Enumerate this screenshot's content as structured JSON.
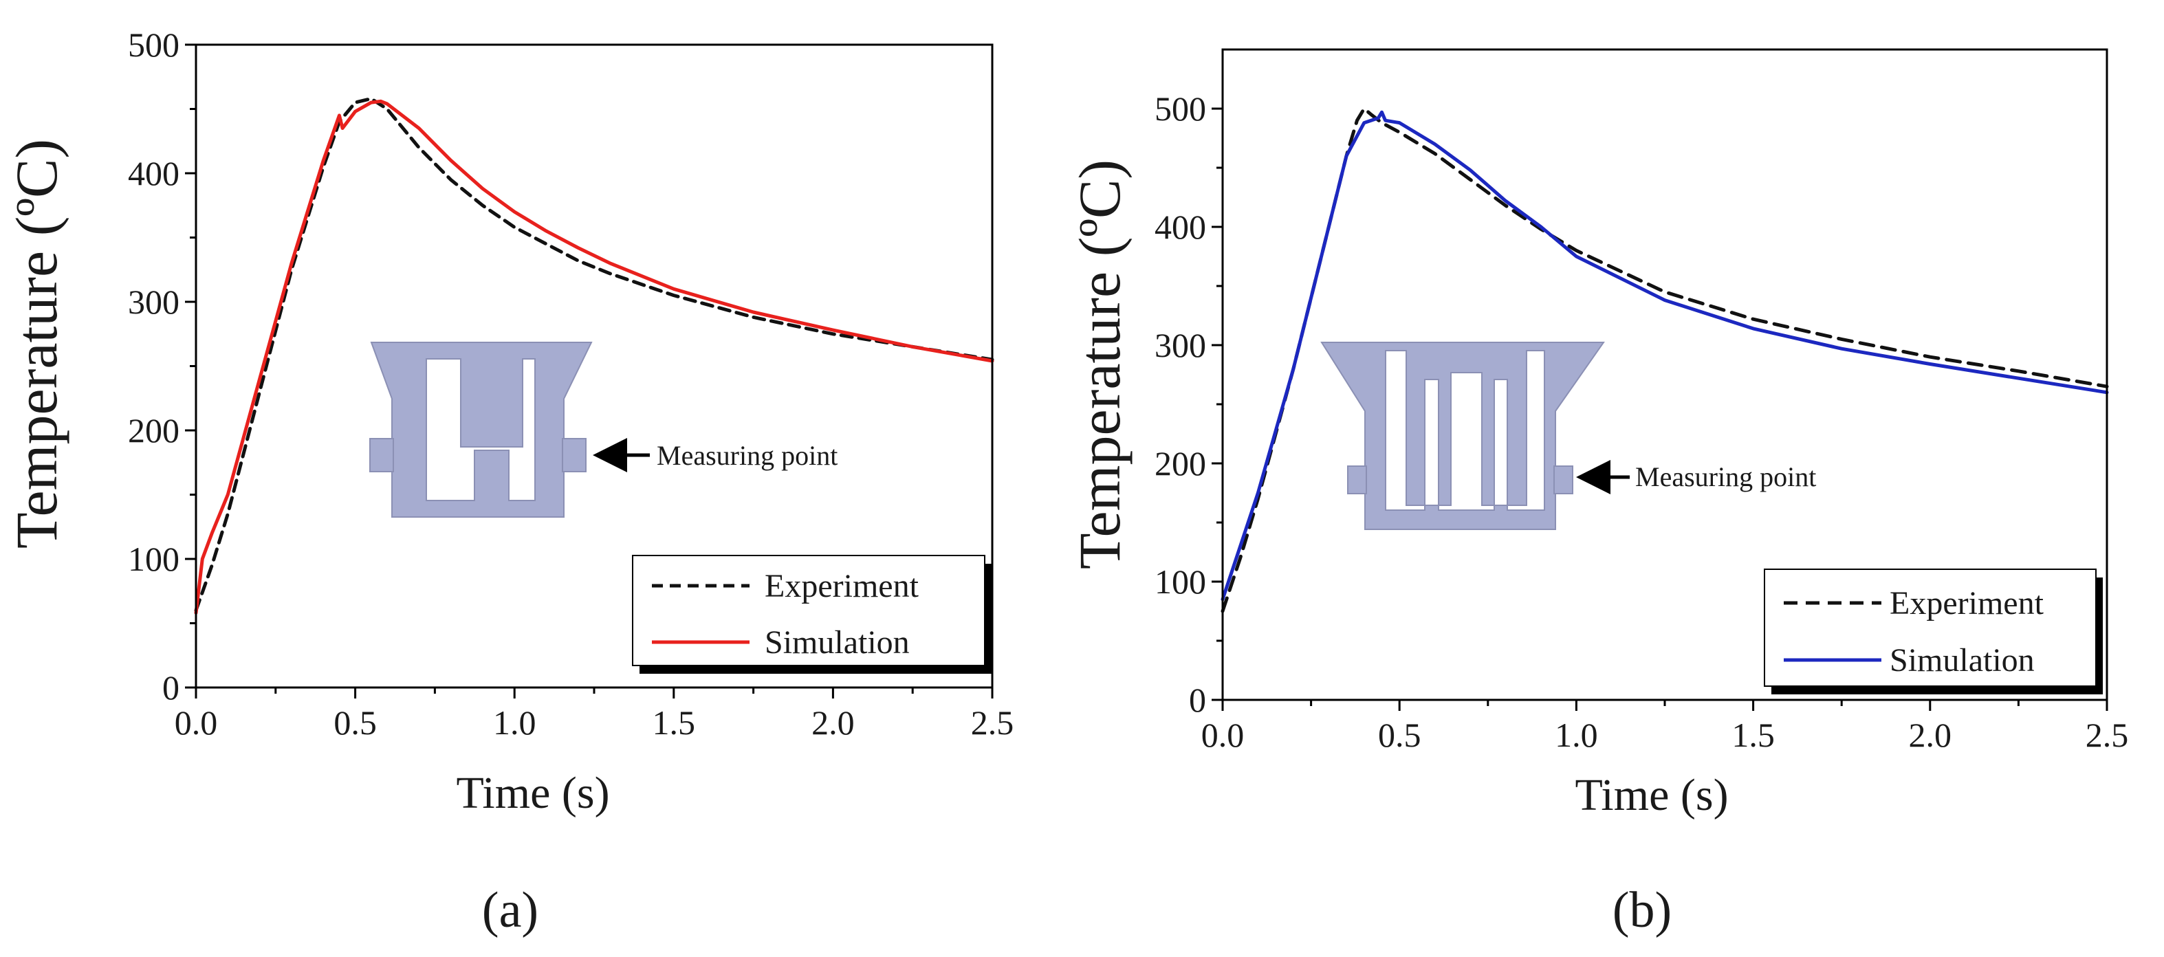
{
  "chart_data": [
    {
      "panel": "(a)",
      "type": "line",
      "xlabel": "Time (s)",
      "ylabel": "Temperature (ºC)",
      "xlim": [
        0,
        2.5
      ],
      "ylim": [
        0,
        500
      ],
      "xticks": [
        "0.0",
        "0.5",
        "1.0",
        "1.5",
        "2.0",
        "2.5"
      ],
      "yticks": [
        "0",
        "100",
        "200",
        "300",
        "400",
        "500"
      ],
      "xtick_values": [
        0,
        0.5,
        1.0,
        1.5,
        2.0,
        2.5
      ],
      "ytick_values": [
        0,
        100,
        200,
        300,
        400,
        500
      ],
      "annotation": "Measuring point",
      "legend_position": "bottom-right",
      "series": [
        {
          "name": "Experiment",
          "style": "dashed",
          "color": "#111111",
          "x": [
            0,
            0.05,
            0.1,
            0.2,
            0.3,
            0.4,
            0.45,
            0.5,
            0.55,
            0.6,
            0.7,
            0.8,
            0.9,
            1.0,
            1.1,
            1.2,
            1.3,
            1.5,
            1.75,
            2.0,
            2.25,
            2.5
          ],
          "y": [
            60,
            95,
            135,
            230,
            325,
            405,
            440,
            455,
            458,
            450,
            420,
            395,
            375,
            358,
            345,
            332,
            322,
            305,
            288,
            275,
            265,
            255
          ]
        },
        {
          "name": "Simulation",
          "style": "solid",
          "color": "#e8211d",
          "x": [
            0,
            0.02,
            0.05,
            0.1,
            0.2,
            0.3,
            0.4,
            0.45,
            0.46,
            0.5,
            0.55,
            0.58,
            0.6,
            0.7,
            0.8,
            0.9,
            1.0,
            1.1,
            1.2,
            1.3,
            1.5,
            1.75,
            2.0,
            2.25,
            2.5
          ],
          "y": [
            58,
            100,
            120,
            150,
            240,
            330,
            410,
            445,
            435,
            448,
            455,
            456,
            454,
            435,
            410,
            388,
            370,
            355,
            342,
            330,
            310,
            292,
            278,
            265,
            254
          ]
        }
      ]
    },
    {
      "panel": "(b)",
      "type": "line",
      "xlabel": "Time (s)",
      "ylabel": "Temperature (ºC)",
      "xlim": [
        0,
        2.5
      ],
      "ylim": [
        0,
        550
      ],
      "xticks": [
        "0.0",
        "0.5",
        "1.0",
        "1.5",
        "2.0",
        "2.5"
      ],
      "yticks": [
        "0",
        "100",
        "200",
        "300",
        "400",
        "500"
      ],
      "xtick_values": [
        0,
        0.5,
        1.0,
        1.5,
        2.0,
        2.5
      ],
      "ytick_values": [
        0,
        100,
        200,
        300,
        400,
        500
      ],
      "annotation": "Measuring point",
      "legend_position": "bottom-right",
      "series": [
        {
          "name": "Experiment",
          "style": "dashed",
          "color": "#111111",
          "x": [
            0,
            0.05,
            0.1,
            0.2,
            0.3,
            0.35,
            0.38,
            0.4,
            0.42,
            0.45,
            0.5,
            0.6,
            0.7,
            0.8,
            0.9,
            1.0,
            1.25,
            1.5,
            1.75,
            2.0,
            2.25,
            2.5
          ],
          "y": [
            75,
            120,
            170,
            280,
            400,
            460,
            490,
            500,
            495,
            488,
            480,
            462,
            440,
            418,
            398,
            380,
            345,
            322,
            305,
            290,
            278,
            265
          ]
        },
        {
          "name": "Simulation",
          "style": "solid",
          "color": "#1c28c0",
          "x": [
            0,
            0.05,
            0.1,
            0.2,
            0.3,
            0.35,
            0.4,
            0.44,
            0.45,
            0.46,
            0.5,
            0.6,
            0.7,
            0.8,
            0.9,
            1.0,
            1.25,
            1.5,
            1.75,
            2.0,
            2.25,
            2.5
          ],
          "y": [
            85,
            130,
            175,
            280,
            400,
            460,
            488,
            492,
            497,
            490,
            488,
            470,
            448,
            422,
            400,
            375,
            338,
            314,
            297,
            284,
            272,
            260
          ]
        }
      ]
    }
  ]
}
